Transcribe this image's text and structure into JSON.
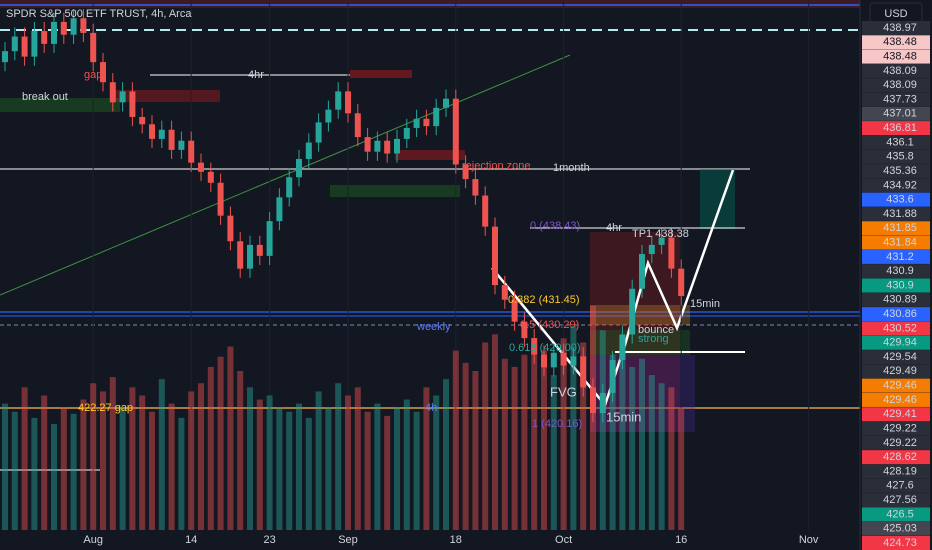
{
  "chart_data": {
    "type": "candlestick",
    "title": "SPDR S&P 500 ETF TRUST, 4h, Arca",
    "currency": "USD",
    "categories": [
      null,
      null,
      null,
      null,
      null,
      null,
      null,
      null,
      null,
      "Aug",
      null,
      null,
      null,
      null,
      null,
      null,
      null,
      null,
      null,
      "14",
      null,
      null,
      null,
      null,
      null,
      null,
      null,
      "23",
      null,
      null,
      null,
      null,
      null,
      null,
      null,
      "Sep",
      null,
      null,
      null,
      null,
      null,
      null,
      null,
      null,
      null,
      null,
      "18",
      null,
      null,
      null,
      null,
      null,
      null,
      null,
      null,
      null,
      null,
      "Oct",
      null,
      null,
      null,
      null,
      null,
      null,
      null,
      null,
      null,
      null,
      null,
      "16",
      null,
      null,
      null,
      null,
      null,
      null,
      null,
      null,
      null,
      null,
      null,
      null,
      "Nov"
    ],
    "open": [
      441.2,
      441.8,
      442.6,
      441.5,
      442.9,
      442.2,
      443.4,
      442.7,
      443.6,
      442.8,
      441.2,
      440.1,
      439.0,
      439.6,
      438.2,
      437.8,
      437.0,
      437.5,
      436.4,
      436.9,
      435.7,
      435.2,
      434.6,
      432.8,
      431.4,
      429.9,
      431.2,
      430.6,
      432.5,
      433.8,
      434.9,
      435.9,
      436.8,
      437.9,
      438.6,
      439.6,
      438.4,
      437.1,
      436.3,
      436.9,
      436.2,
      437.0,
      437.6,
      438.1,
      437.7,
      438.7,
      439.2,
      435.6,
      434.8,
      433.9,
      432.2,
      429.0,
      428.2,
      427.0,
      426.1,
      425.2,
      424.5,
      425.3,
      424.6,
      425.1,
      423.4,
      422.0,
      423.1,
      424.9,
      426.3,
      428.8,
      430.7,
      431.2,
      431.6,
      429.9,
      null,
      null,
      null,
      null,
      null,
      null,
      null,
      null,
      null,
      null,
      null,
      null,
      null
    ],
    "high": [
      442.3,
      443.1,
      443.1,
      443.4,
      443.4,
      443.9,
      443.9,
      444.1,
      444.1,
      443.3,
      441.7,
      440.6,
      440.1,
      440.1,
      438.7,
      438.3,
      438.0,
      438.0,
      437.4,
      437.4,
      436.2,
      435.7,
      435.1,
      433.3,
      431.9,
      431.7,
      431.7,
      433.0,
      434.3,
      435.4,
      436.4,
      437.3,
      438.4,
      439.1,
      440.1,
      440.1,
      438.9,
      437.6,
      437.4,
      437.4,
      437.5,
      438.1,
      438.6,
      438.6,
      439.2,
      439.7,
      439.7,
      436.1,
      435.3,
      434.4,
      432.7,
      429.5,
      428.7,
      427.5,
      426.6,
      425.7,
      425.8,
      425.8,
      425.6,
      425.6,
      423.9,
      423.6,
      425.4,
      426.8,
      429.3,
      431.2,
      431.7,
      432.1,
      432.1,
      430.4,
      null,
      null,
      null,
      null,
      null,
      null,
      null,
      null,
      null,
      null,
      null,
      null,
      null
    ],
    "low": [
      440.7,
      441.3,
      441.0,
      441.0,
      441.7,
      441.7,
      442.2,
      442.2,
      442.3,
      440.7,
      439.6,
      438.5,
      438.5,
      437.7,
      437.3,
      436.5,
      436.5,
      435.9,
      435.9,
      435.2,
      434.7,
      434.1,
      432.3,
      430.9,
      429.4,
      429.4,
      430.1,
      430.1,
      432.0,
      433.3,
      434.4,
      435.4,
      436.3,
      437.4,
      438.1,
      437.9,
      436.6,
      435.8,
      435.8,
      435.7,
      435.7,
      436.5,
      437.1,
      437.2,
      437.2,
      438.2,
      435.1,
      434.3,
      433.4,
      431.7,
      428.5,
      427.7,
      426.5,
      425.6,
      424.7,
      424.0,
      424.0,
      424.1,
      424.1,
      422.9,
      421.5,
      421.5,
      422.6,
      424.4,
      425.8,
      428.3,
      430.2,
      430.7,
      429.4,
      427.9,
      null,
      null,
      null,
      null,
      null,
      null,
      null,
      null,
      null,
      null,
      null,
      null,
      null
    ],
    "close": [
      441.8,
      442.6,
      441.5,
      442.9,
      442.2,
      443.4,
      442.7,
      443.6,
      442.8,
      441.2,
      440.1,
      439.0,
      439.6,
      438.2,
      437.8,
      437.0,
      437.5,
      436.4,
      436.9,
      435.7,
      435.2,
      434.6,
      432.8,
      431.4,
      429.9,
      431.2,
      430.6,
      432.5,
      433.8,
      434.9,
      435.9,
      436.8,
      437.9,
      438.6,
      439.6,
      438.4,
      437.1,
      436.3,
      436.9,
      436.2,
      437.0,
      437.6,
      438.1,
      437.7,
      438.7,
      439.2,
      435.6,
      434.8,
      433.9,
      432.2,
      429.0,
      428.2,
      427.0,
      426.1,
      425.2,
      424.5,
      425.3,
      424.6,
      425.1,
      423.4,
      422.0,
      423.1,
      424.9,
      426.3,
      428.8,
      430.7,
      431.2,
      431.6,
      429.9,
      428.4,
      null,
      null,
      null,
      null,
      null,
      null,
      null,
      null,
      null,
      null,
      null,
      null,
      null
    ],
    "volume": [
      62,
      58,
      70,
      55,
      66,
      52,
      60,
      57,
      64,
      72,
      68,
      75,
      60,
      70,
      66,
      58,
      74,
      62,
      55,
      68,
      72,
      80,
      85,
      90,
      78,
      70,
      64,
      66,
      60,
      58,
      62,
      55,
      68,
      60,
      72,
      66,
      70,
      58,
      62,
      56,
      60,
      64,
      58,
      70,
      66,
      74,
      88,
      82,
      78,
      92,
      96,
      84,
      80,
      86,
      90,
      88,
      76,
      94,
      100,
      92,
      110,
      98,
      86,
      90,
      80,
      84,
      76,
      72,
      70,
      60,
      null,
      null,
      null,
      null,
      null,
      null,
      null,
      null,
      null,
      null,
      null,
      null,
      null
    ],
    "up_color": "#26a69a",
    "down_color": "#ef5350",
    "ylim": [
      415.6,
      444.6
    ],
    "volume_lim": [
      0,
      260
    ],
    "price_tags": [
      438.97,
      438.48,
      438.48,
      438.09,
      438.09,
      437.73,
      437.01,
      436.81,
      436.1,
      435.8,
      435.36,
      434.92,
      433.6,
      431.88,
      431.85,
      431.84,
      431.2,
      430.9,
      430.9,
      430.89,
      430.86,
      430.52,
      429.94,
      429.54,
      429.49,
      429.46,
      429.46,
      429.41,
      429.22,
      429.22,
      428.62,
      428.19,
      427.6,
      427.56,
      426.5,
      425.03,
      424.73
    ],
    "price_tag_colors": [
      "#2a2e39",
      "#f7c6c7",
      "#f7c6c7",
      "#2a2e39",
      "#2a2e39",
      "#2a2e39",
      "#434651",
      "#f23645",
      "#2a2e39",
      "#2a2e39",
      "#2a2e39",
      "#2a2e39",
      "#2962ff",
      "#2a2e39",
      "#f57c00",
      "#f57c00",
      "#2962ff",
      "#2a2e39",
      "#089981",
      "#2a2e39",
      "#2962ff",
      "#f23645",
      "#089981",
      "#2a2e39",
      "#2a2e39",
      "#f57c00",
      "#f57c00",
      "#f23645",
      "#2a2e39",
      "#2a2e39",
      "#f23645",
      "#2a2e39",
      "#2a2e39",
      "#2a2e39",
      "#089981",
      "#434651",
      "#f23645"
    ],
    "annotations": [
      "gap",
      "break out",
      "4hr",
      "1month",
      "rejection zone",
      "0 (438.43)",
      "4hr",
      "TP1 438.38",
      "0.382 (431.45)",
      "0.5 (430.29)",
      "weekly",
      "0.618 (429.00)",
      "strong",
      "bounce",
      "15min",
      "15min",
      "FVG",
      "1 (420.16)",
      "422.27 gap",
      "4h"
    ]
  }
}
